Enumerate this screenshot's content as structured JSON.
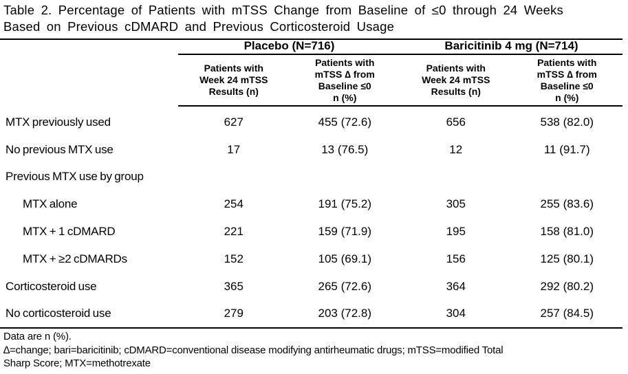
{
  "title": "Table 2. Percentage of Patients with mTSS Change from Baseline of ≤0 through 24 Weeks\nBased on Previous cDMARD and Previous Corticosteroid Usage",
  "column_groups": [
    {
      "label": "Placebo (N=716)"
    },
    {
      "label": "Baricitinib 4 mg (N=714)"
    }
  ],
  "sub_headers": [
    "Patients with\nWeek 24 mTSS\nResults (n)",
    "Patients with\nmTSS ∆ from\nBaseline ≤0\nn (%)",
    "Patients with\nWeek 24 mTSS\nResults (n)",
    "Patients with\nmTSS ∆ from\nBaseline ≤0\nn (%)"
  ],
  "rows": [
    {
      "label": "MTX previously used",
      "values": [
        "627",
        "455 (72.6)",
        "656",
        "538 (82.0)"
      ]
    },
    {
      "label": "No previous MTX use",
      "values": [
        "17",
        "13 (76.5)",
        "12",
        "11 (91.7)"
      ]
    },
    {
      "label": "Previous MTX use by group",
      "values": [
        "",
        "",
        "",
        ""
      ]
    },
    {
      "label": "MTX alone",
      "values": [
        "254",
        "191 (75.2)",
        "305",
        "255 (83.6)"
      ]
    },
    {
      "label": "MTX + 1 cDMARD",
      "values": [
        "221",
        "159 (71.9)",
        "195",
        "158 (81.0)"
      ]
    },
    {
      "label": "MTX + ≥2 cDMARDs",
      "values": [
        "152",
        "105 (69.1)",
        "156",
        "125 (80.1)"
      ]
    },
    {
      "label": "Corticosteroid use",
      "values": [
        "365",
        "265 (72.6)",
        "364",
        "292 (80.2)"
      ]
    },
    {
      "label": "No corticosteroid use",
      "values": [
        "279",
        "203 (72.8)",
        "304",
        "257 (84.5)"
      ]
    }
  ],
  "footnotes": [
    "Data are n (%).",
    "∆=change; bari=baricitinib; cDMARD=conventional disease modifying antirheumatic drugs; mTSS=modified Total\nSharp Score; MTX=methotrexate"
  ]
}
